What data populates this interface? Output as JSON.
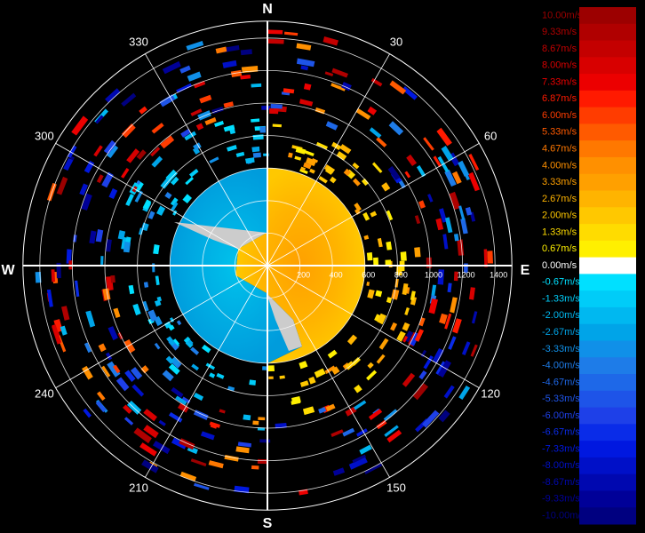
{
  "compass": {
    "north": "N",
    "east": "E",
    "south": "S",
    "west": "W"
  },
  "azimuths": [
    30,
    60,
    120,
    150,
    210,
    240,
    300,
    330
  ],
  "ranges": [
    200,
    400,
    600,
    800,
    1000,
    1200,
    1400
  ],
  "colorbar": [
    {
      "label": "10.00m/s",
      "color": "#9c0000"
    },
    {
      "label": "9.33m/s",
      "color": "#b00000"
    },
    {
      "label": "8.67m/s",
      "color": "#c40000"
    },
    {
      "label": "8.00m/s",
      "color": "#d80000"
    },
    {
      "label": "7.33m/s",
      "color": "#ec0000"
    },
    {
      "label": "6.87m/s",
      "color": "#ff1a00"
    },
    {
      "label": "6.00m/s",
      "color": "#ff3c00"
    },
    {
      "label": "5.33m/s",
      "color": "#ff5a00"
    },
    {
      "label": "4.67m/s",
      "color": "#ff7800"
    },
    {
      "label": "4.00m/s",
      "color": "#ff9000"
    },
    {
      "label": "3.33m/s",
      "color": "#ffa000"
    },
    {
      "label": "2.67m/s",
      "color": "#ffb400"
    },
    {
      "label": "2.00m/s",
      "color": "#ffc800"
    },
    {
      "label": "1.33m/s",
      "color": "#ffdc00"
    },
    {
      "label": "0.67m/s",
      "color": "#fff000"
    },
    {
      "label": "0.00m/s",
      "color": "#ffffff"
    },
    {
      "label": "-0.67m/s",
      "color": "#00e0ff"
    },
    {
      "label": "-1.33m/s",
      "color": "#00ccf8"
    },
    {
      "label": "-2.00m/s",
      "color": "#00b8f0"
    },
    {
      "label": "-2.67m/s",
      "color": "#00a4e8"
    },
    {
      "label": "-3.33m/s",
      "color": "#1090e8"
    },
    {
      "label": "-4.00m/s",
      "color": "#1e7ce8"
    },
    {
      "label": "-4.67m/s",
      "color": "#1e68e8"
    },
    {
      "label": "-5.33m/s",
      "color": "#1e54e8"
    },
    {
      "label": "-6.00m/s",
      "color": "#1e40e8"
    },
    {
      "label": "-6.67m/s",
      "color": "#0a2ce8"
    },
    {
      "label": "-7.33m/s",
      "color": "#0018e0"
    },
    {
      "label": "-8.00m/s",
      "color": "#0010c8"
    },
    {
      "label": "-8.67m/s",
      "color": "#0008b0"
    },
    {
      "label": "-9.33m/s",
      "color": "#000098"
    },
    {
      "label": "-10.00m/s",
      "color": "#000080"
    }
  ]
}
